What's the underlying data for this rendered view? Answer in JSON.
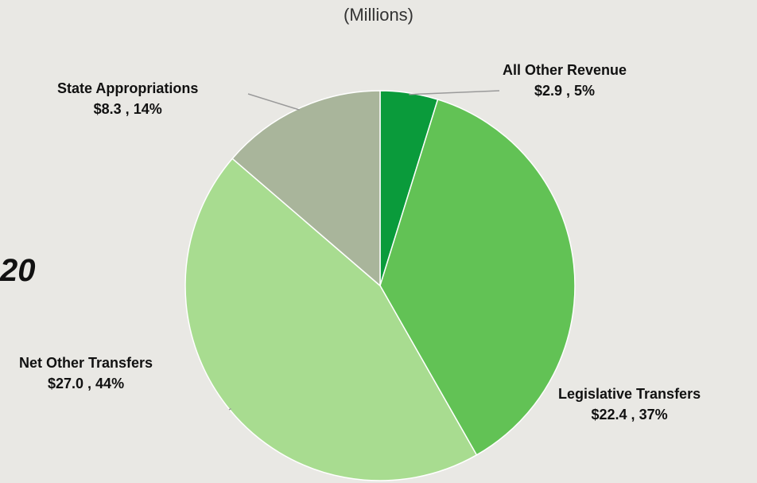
{
  "header": {
    "subtitle": "(Millions)"
  },
  "side_text": "20",
  "chart_data": {
    "type": "pie",
    "title": "",
    "unit": "Millions",
    "slices": [
      {
        "label": "All Other Revenue",
        "value": 2.9,
        "value_text": "$2.9",
        "percent": "5%",
        "color": "#0a9b3b"
      },
      {
        "label": "Legislative Transfers",
        "value": 22.4,
        "value_text": "$22.4",
        "percent": "37%",
        "color": "#62c255"
      },
      {
        "label": "Net Other Transfers",
        "value": 27.0,
        "value_text": "$27.0",
        "percent": "44%",
        "color": "#a8dc90"
      },
      {
        "label": "State Appropriations",
        "value": 8.3,
        "value_text": "$8.3",
        "percent": "14%",
        "color": "#a9b59b"
      }
    ],
    "start_angle_deg": 0,
    "direction": "clockwise",
    "legend": "none"
  }
}
